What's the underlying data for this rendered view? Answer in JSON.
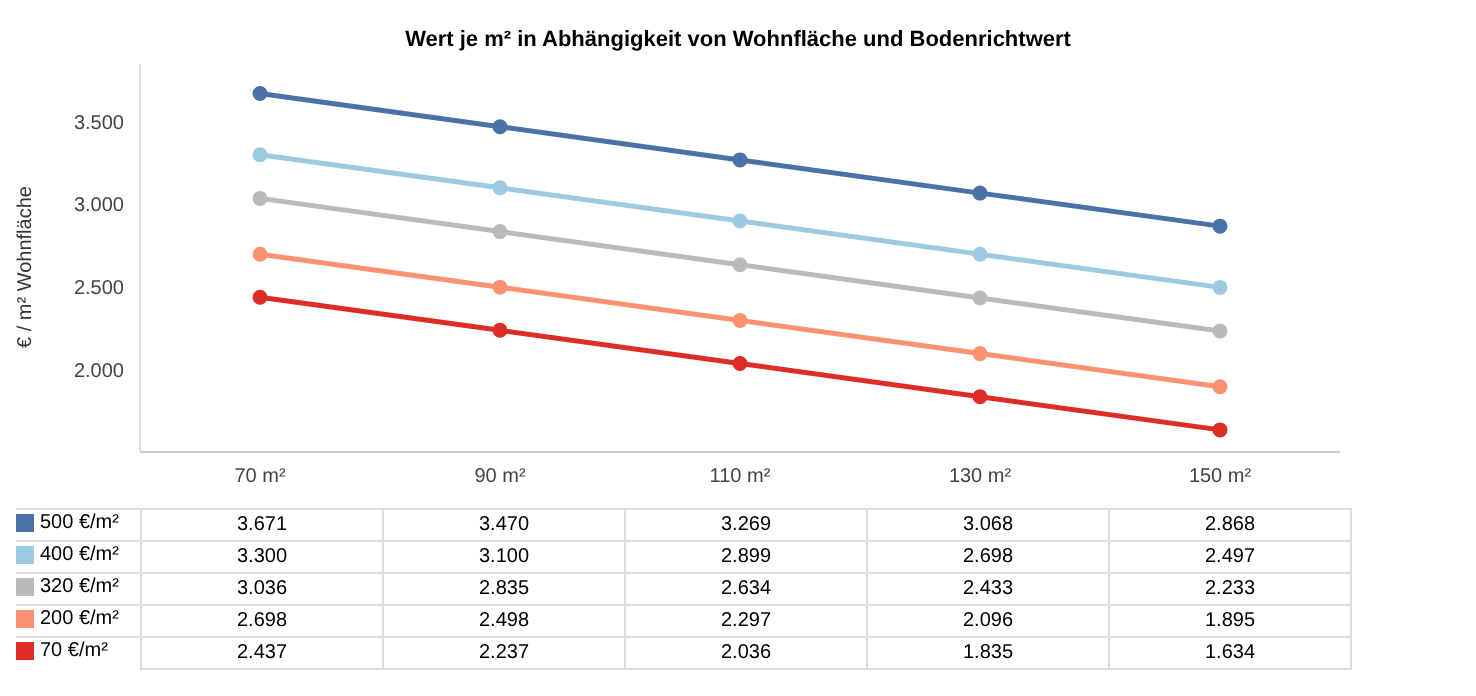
{
  "chart_data": {
    "type": "line",
    "title": "Wert je m² in Abhängigkeit von Wohnfläche und Bodenrichtwert",
    "ylabel": "€ / m² Wohnfläche",
    "categories": [
      "70 m²",
      "90 m²",
      "110 m²",
      "130 m²",
      "150 m²"
    ],
    "series": [
      {
        "name": "500 €/m²",
        "color": "#4a72a6",
        "values": [
          3671,
          3470,
          3269,
          3068,
          2868
        ],
        "value_labels": [
          "3.671",
          "3.470",
          "3.269",
          "3.068",
          "2.868"
        ]
      },
      {
        "name": "400 €/m²",
        "color": "#9ccae1",
        "values": [
          3300,
          3100,
          2899,
          2698,
          2497
        ],
        "value_labels": [
          "3.300",
          "3.100",
          "2.899",
          "2.698",
          "2.497"
        ]
      },
      {
        "name": "320 €/m²",
        "color": "#bababa",
        "values": [
          3036,
          2835,
          2634,
          2433,
          2233
        ],
        "value_labels": [
          "3.036",
          "2.835",
          "2.634",
          "2.433",
          "2.233"
        ]
      },
      {
        "name": "200 €/m²",
        "color": "#fc9272",
        "values": [
          2698,
          2498,
          2297,
          2096,
          1895
        ],
        "value_labels": [
          "2.698",
          "2.498",
          "2.297",
          "2.096",
          "1.895"
        ]
      },
      {
        "name": "70 €/m²",
        "color": "#dd2d26",
        "values": [
          2437,
          2237,
          2036,
          1835,
          1634
        ],
        "value_labels": [
          "2.437",
          "2.237",
          "2.036",
          "1.835",
          "1.634"
        ]
      }
    ],
    "ylim": [
      1500,
      3850
    ],
    "yticks": [
      {
        "value": 2000,
        "label": "2.000"
      },
      {
        "value": 2500,
        "label": "2.500"
      },
      {
        "value": 3000,
        "label": "3.000"
      },
      {
        "value": 3500,
        "label": "3.500"
      }
    ],
    "grid": false,
    "legend": "bottom left",
    "marker": "circle",
    "line_style": "solid"
  }
}
